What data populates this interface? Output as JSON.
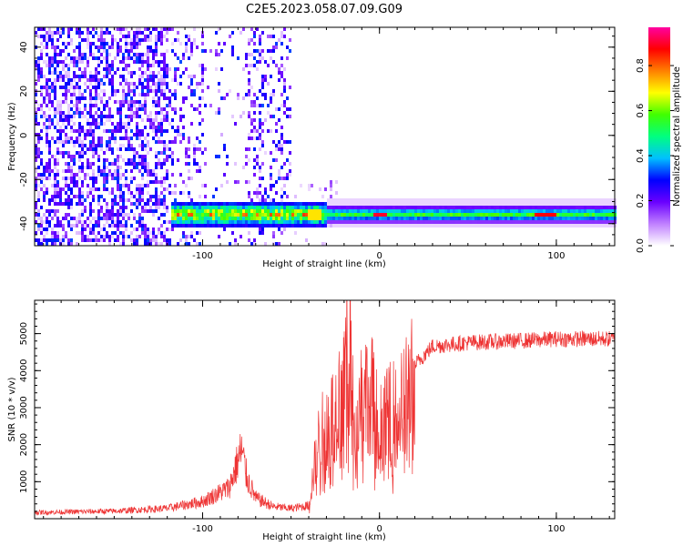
{
  "title": "C2E5.2023.058.07.09.G09",
  "chart_data": [
    {
      "type": "heatmap",
      "xlabel": "Height of straight line (km)",
      "ylabel": "Frequency (Hz)",
      "xlim": [
        -195,
        133
      ],
      "ylim": [
        -50,
        49
      ],
      "xticks": [
        -100,
        0,
        100
      ],
      "yticks": [
        -40,
        -20,
        0,
        20,
        40
      ],
      "colorbar": {
        "label": "Normalized spectral amplitude",
        "range": [
          0,
          0.97
        ],
        "ticks": [
          "0.0",
          "0.2",
          "0.4",
          "0.6",
          "0.8"
        ],
        "tick_values": [
          0,
          0.2,
          0.4,
          0.6,
          0.8
        ],
        "colors": [
          "#ffffff",
          "#c080ff",
          "#6a00ff",
          "#0000ff",
          "#00c0ff",
          "#00ff80",
          "#40ff00",
          "#ffff00",
          "#ff8000",
          "#ff0000",
          "#ff00a0"
        ]
      },
      "band": {
        "frequency": -35,
        "x_range": [
          -118,
          133
        ]
      },
      "noise_region_x": [
        -195,
        -50
      ]
    },
    {
      "type": "line",
      "xlabel": "Height of straight line (km)",
      "ylabel": "SNR (10 * v/v)",
      "xlim": [
        -195,
        133
      ],
      "ylim": [
        0,
        5900
      ],
      "xticks": [
        -100,
        0,
        100
      ],
      "yticks": [
        1000,
        2000,
        3000,
        4000,
        5000
      ],
      "color": "#ee3333",
      "envelope": {
        "x": [
          -195,
          -150,
          -120,
          -100,
          -85,
          -78,
          -75,
          -70,
          -60,
          -50,
          -40,
          -35,
          -30,
          -25,
          -20,
          -17,
          -15,
          -10,
          -5,
          0,
          10,
          20,
          30,
          50,
          80,
          100,
          133
        ],
        "y": [
          180,
          220,
          300,
          500,
          900,
          2000,
          1200,
          600,
          350,
          300,
          380,
          2200,
          2800,
          3200,
          4300,
          5900,
          3500,
          3700,
          3900,
          2700,
          3400,
          4200,
          4700,
          4800,
          4850,
          4900,
          4900
        ]
      }
    }
  ]
}
